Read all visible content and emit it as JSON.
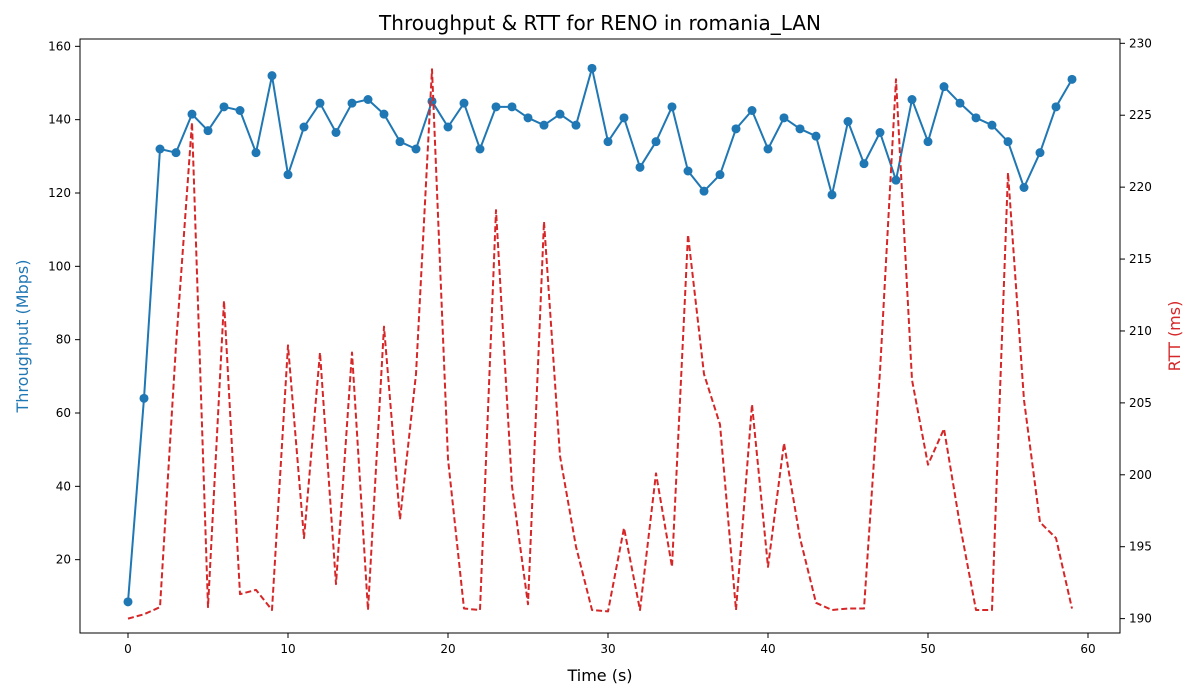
{
  "chart_data": {
    "type": "line",
    "title": "Throughput & RTT for RENO in romania_LAN",
    "xlabel": "Time (s)",
    "ylabel_left": "Throughput (Mbps)",
    "ylabel_right": "RTT (ms)",
    "xlim": [
      -3,
      62
    ],
    "ylim_left": [
      0,
      162
    ],
    "ylim_right": [
      189,
      230.3
    ],
    "x_ticks": [
      0,
      10,
      20,
      30,
      40,
      50,
      60
    ],
    "y_left_ticks": [
      20,
      40,
      60,
      80,
      100,
      120,
      140,
      160
    ],
    "y_right_ticks": [
      190,
      195,
      200,
      205,
      210,
      215,
      220,
      225,
      230
    ],
    "grid": false,
    "legend": "none",
    "colors": {
      "throughput": "#1f77b4",
      "rtt": "#d62728"
    },
    "x": [
      0,
      1,
      2,
      3,
      4,
      5,
      6,
      7,
      8,
      9,
      10,
      11,
      12,
      13,
      14,
      15,
      16,
      17,
      18,
      19,
      20,
      21,
      22,
      23,
      24,
      25,
      26,
      27,
      28,
      29,
      30,
      31,
      32,
      33,
      34,
      35,
      36,
      37,
      38,
      39,
      40,
      41,
      42,
      43,
      44,
      45,
      46,
      47,
      48,
      49,
      50,
      51,
      52,
      53,
      54,
      55,
      56,
      57,
      58,
      59
    ],
    "series": [
      {
        "axis": "left",
        "style": "solid-markers",
        "values": [
          8.5,
          64,
          132,
          131,
          141.5,
          137,
          143.5,
          142.5,
          131,
          152,
          125,
          138,
          144.5,
          136.5,
          144.5,
          145.5,
          141.5,
          134,
          132,
          145,
          138,
          144.5,
          132,
          143.5,
          143.5,
          140.5,
          138.5,
          141.5,
          138.5,
          154,
          134,
          140.5,
          127,
          134,
          143.5,
          126,
          120.5,
          125,
          137.5,
          142.5,
          132,
          140.5,
          137.5,
          135.5,
          119.5,
          139.5,
          128,
          136.5,
          123.5,
          145.5,
          134,
          149,
          144.5,
          140.5,
          138.5,
          134,
          121.5,
          131,
          143.5,
          151
        ]
      },
      {
        "axis": "right",
        "style": "dashed",
        "values": [
          190,
          190.3,
          190.8,
          209,
          224.5,
          190.8,
          212.1,
          191.7,
          192,
          190.6,
          209,
          195.6,
          208.5,
          192.4,
          208.5,
          190.6,
          210.3,
          196.9,
          207,
          228.2,
          201.1,
          190.7,
          190.6,
          218.4,
          199.2,
          191,
          217.6,
          201.3,
          195,
          190.6,
          190.5,
          196.3,
          190.6,
          200.1,
          193.6,
          216.7,
          207,
          203.5,
          190.6,
          204.9,
          193.6,
          202.2,
          195.6,
          191.1,
          190.6,
          190.7,
          190.7,
          207.2,
          227.5,
          206.6,
          200.7,
          203.2,
          196.5,
          190.6,
          190.6,
          221,
          205.2,
          196.7,
          195.6,
          190.7
        ]
      }
    ]
  }
}
